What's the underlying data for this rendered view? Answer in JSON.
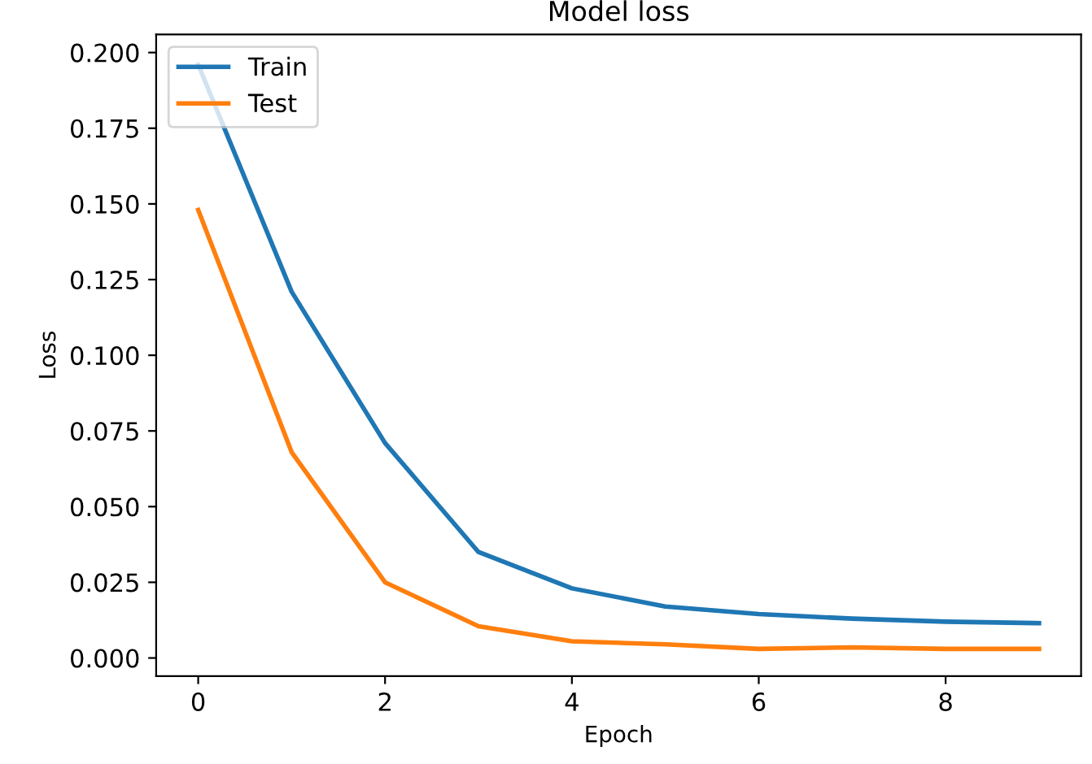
{
  "chart_data": {
    "type": "line",
    "title": "Model loss",
    "xlabel": "Epoch",
    "ylabel": "Loss",
    "x": [
      0,
      1,
      2,
      3,
      4,
      5,
      6,
      7,
      8,
      9
    ],
    "series": [
      {
        "name": "Train",
        "color": "#1f77b4",
        "values": [
          0.196,
          0.121,
          0.071,
          0.035,
          0.023,
          0.017,
          0.0145,
          0.013,
          0.012,
          0.0115
        ]
      },
      {
        "name": "Test",
        "color": "#ff7f0e",
        "values": [
          0.148,
          0.068,
          0.025,
          0.0105,
          0.0055,
          0.0045,
          0.003,
          0.0035,
          0.003,
          0.003
        ]
      }
    ],
    "xlim": [
      -0.45,
      9.45
    ],
    "ylim": [
      -0.006,
      0.206
    ],
    "xticks": [
      0,
      2,
      4,
      6,
      8
    ],
    "yticks": [
      {
        "value": 0,
        "label": "0.000"
      },
      {
        "value": 0.025,
        "label": "0.025"
      },
      {
        "value": 0.05,
        "label": "0.050"
      },
      {
        "value": 0.075,
        "label": "0.075"
      },
      {
        "value": 0.1,
        "label": "0.100"
      },
      {
        "value": 0.125,
        "label": "0.125"
      },
      {
        "value": 0.15,
        "label": "0.150"
      },
      {
        "value": 0.175,
        "label": "0.175"
      },
      {
        "value": 0.2,
        "label": "0.200"
      }
    ],
    "legend": "top left",
    "grid": false,
    "marker": "none",
    "line_style": "solid"
  }
}
